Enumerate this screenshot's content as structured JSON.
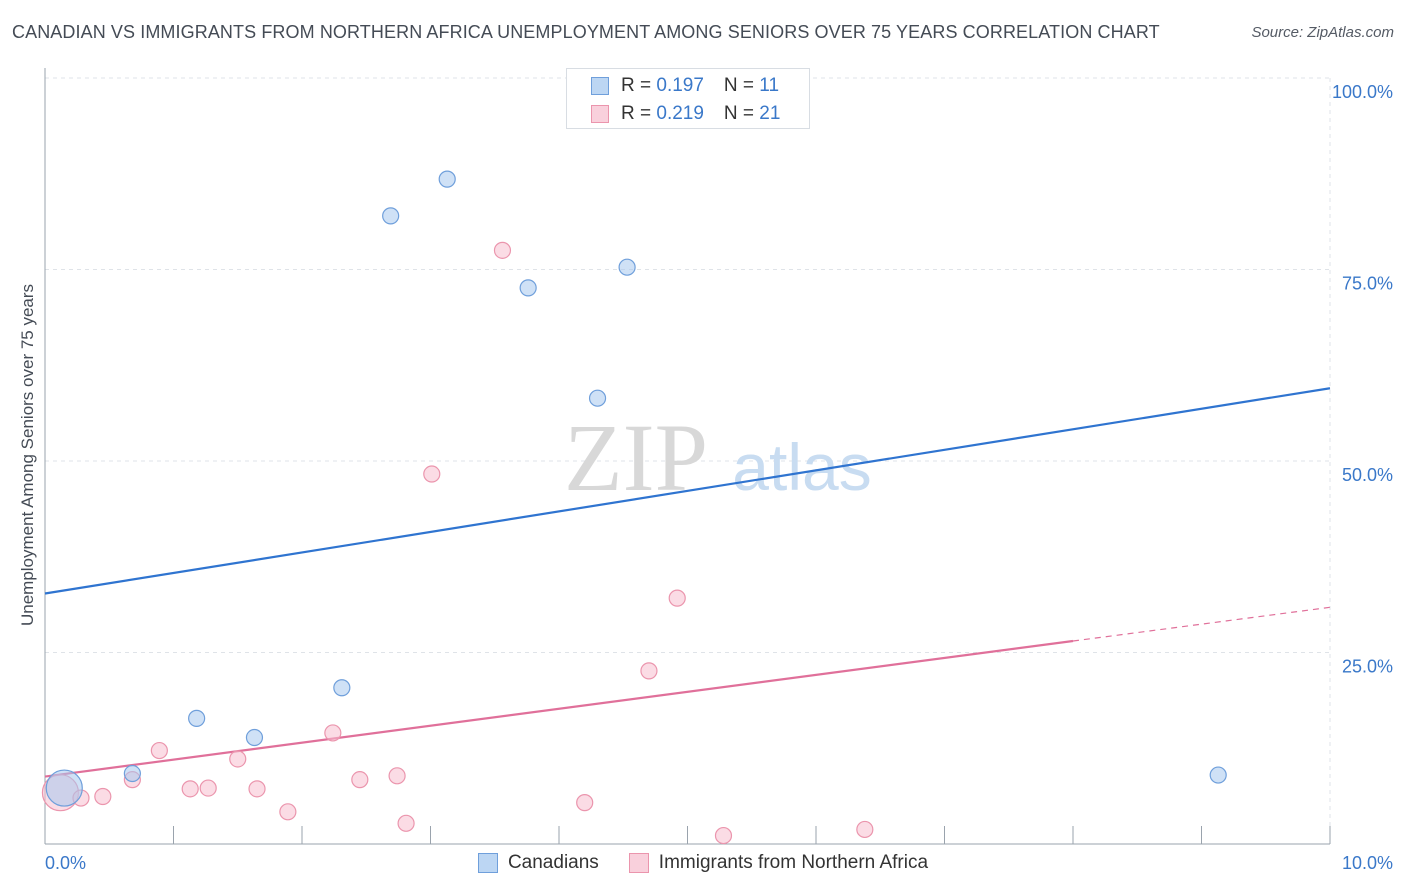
{
  "chart_data": {
    "type": "scatter",
    "title": "CANADIAN VS IMMIGRANTS FROM NORTHERN AFRICA UNEMPLOYMENT AMONG SENIORS OVER 75 YEARS CORRELATION CHART",
    "source": "Source: ZipAtlas.com",
    "xlabel": "",
    "ylabel": "Unemployment Among Seniors over 75 years",
    "xlim": [
      0,
      10
    ],
    "ylim": [
      0,
      100
    ],
    "x_tick_labels": [
      "0.0%",
      "10.0%"
    ],
    "y_tick_labels": [
      "25.0%",
      "50.0%",
      "75.0%",
      "100.0%"
    ],
    "y_tick_values": [
      25,
      50,
      75,
      100
    ],
    "watermark": {
      "zip": "ZIP",
      "atlas": "atlas"
    },
    "series": [
      {
        "name": "Canadians",
        "color": "#a8c8ef",
        "stroke": "#6f9fdb",
        "line_color": "#2f74d0",
        "r": "0.197",
        "n": "11",
        "points": [
          {
            "x": 0.15,
            "y": 7.3,
            "big": true
          },
          {
            "x": 0.68,
            "y": 9.2
          },
          {
            "x": 1.18,
            "y": 16.4
          },
          {
            "x": 1.63,
            "y": 13.9
          },
          {
            "x": 2.31,
            "y": 20.4
          },
          {
            "x": 2.69,
            "y": 82.0
          },
          {
            "x": 3.13,
            "y": 86.8
          },
          {
            "x": 3.76,
            "y": 72.6
          },
          {
            "x": 4.3,
            "y": 58.2
          },
          {
            "x": 4.53,
            "y": 75.3
          },
          {
            "x": 9.13,
            "y": 9.0
          }
        ],
        "trend": {
          "x0": 0.0,
          "y0": 32.7,
          "x1": 10.0,
          "y1": 59.5
        }
      },
      {
        "name": "Immigrants from Northern Africa",
        "color": "#f7bfcf",
        "stroke": "#eb95ad",
        "line_color": "#e0709a",
        "r": "0.219",
        "n": "21",
        "points": [
          {
            "x": 0.12,
            "y": 6.7,
            "big": true
          },
          {
            "x": 0.28,
            "y": 6.0
          },
          {
            "x": 0.45,
            "y": 6.2
          },
          {
            "x": 0.68,
            "y": 8.4
          },
          {
            "x": 0.89,
            "y": 12.2
          },
          {
            "x": 1.13,
            "y": 7.2
          },
          {
            "x": 1.27,
            "y": 7.3
          },
          {
            "x": 1.5,
            "y": 11.1
          },
          {
            "x": 1.65,
            "y": 7.2
          },
          {
            "x": 1.89,
            "y": 4.2
          },
          {
            "x": 2.24,
            "y": 14.5
          },
          {
            "x": 2.45,
            "y": 8.4
          },
          {
            "x": 2.74,
            "y": 8.9
          },
          {
            "x": 2.81,
            "y": 2.7
          },
          {
            "x": 3.01,
            "y": 48.3
          },
          {
            "x": 3.56,
            "y": 77.5
          },
          {
            "x": 4.2,
            "y": 5.4
          },
          {
            "x": 4.7,
            "y": 22.6
          },
          {
            "x": 4.92,
            "y": 32.1
          },
          {
            "x": 5.28,
            "y": 1.1
          },
          {
            "x": 6.38,
            "y": 1.9
          }
        ],
        "trend": {
          "x0": 0.0,
          "y0": 8.8,
          "x1": 8.0,
          "y1": 26.5
        },
        "trend_dashed": {
          "x0": 8.0,
          "y0": 26.5,
          "x1": 10.0,
          "y1": 30.9
        }
      }
    ]
  }
}
